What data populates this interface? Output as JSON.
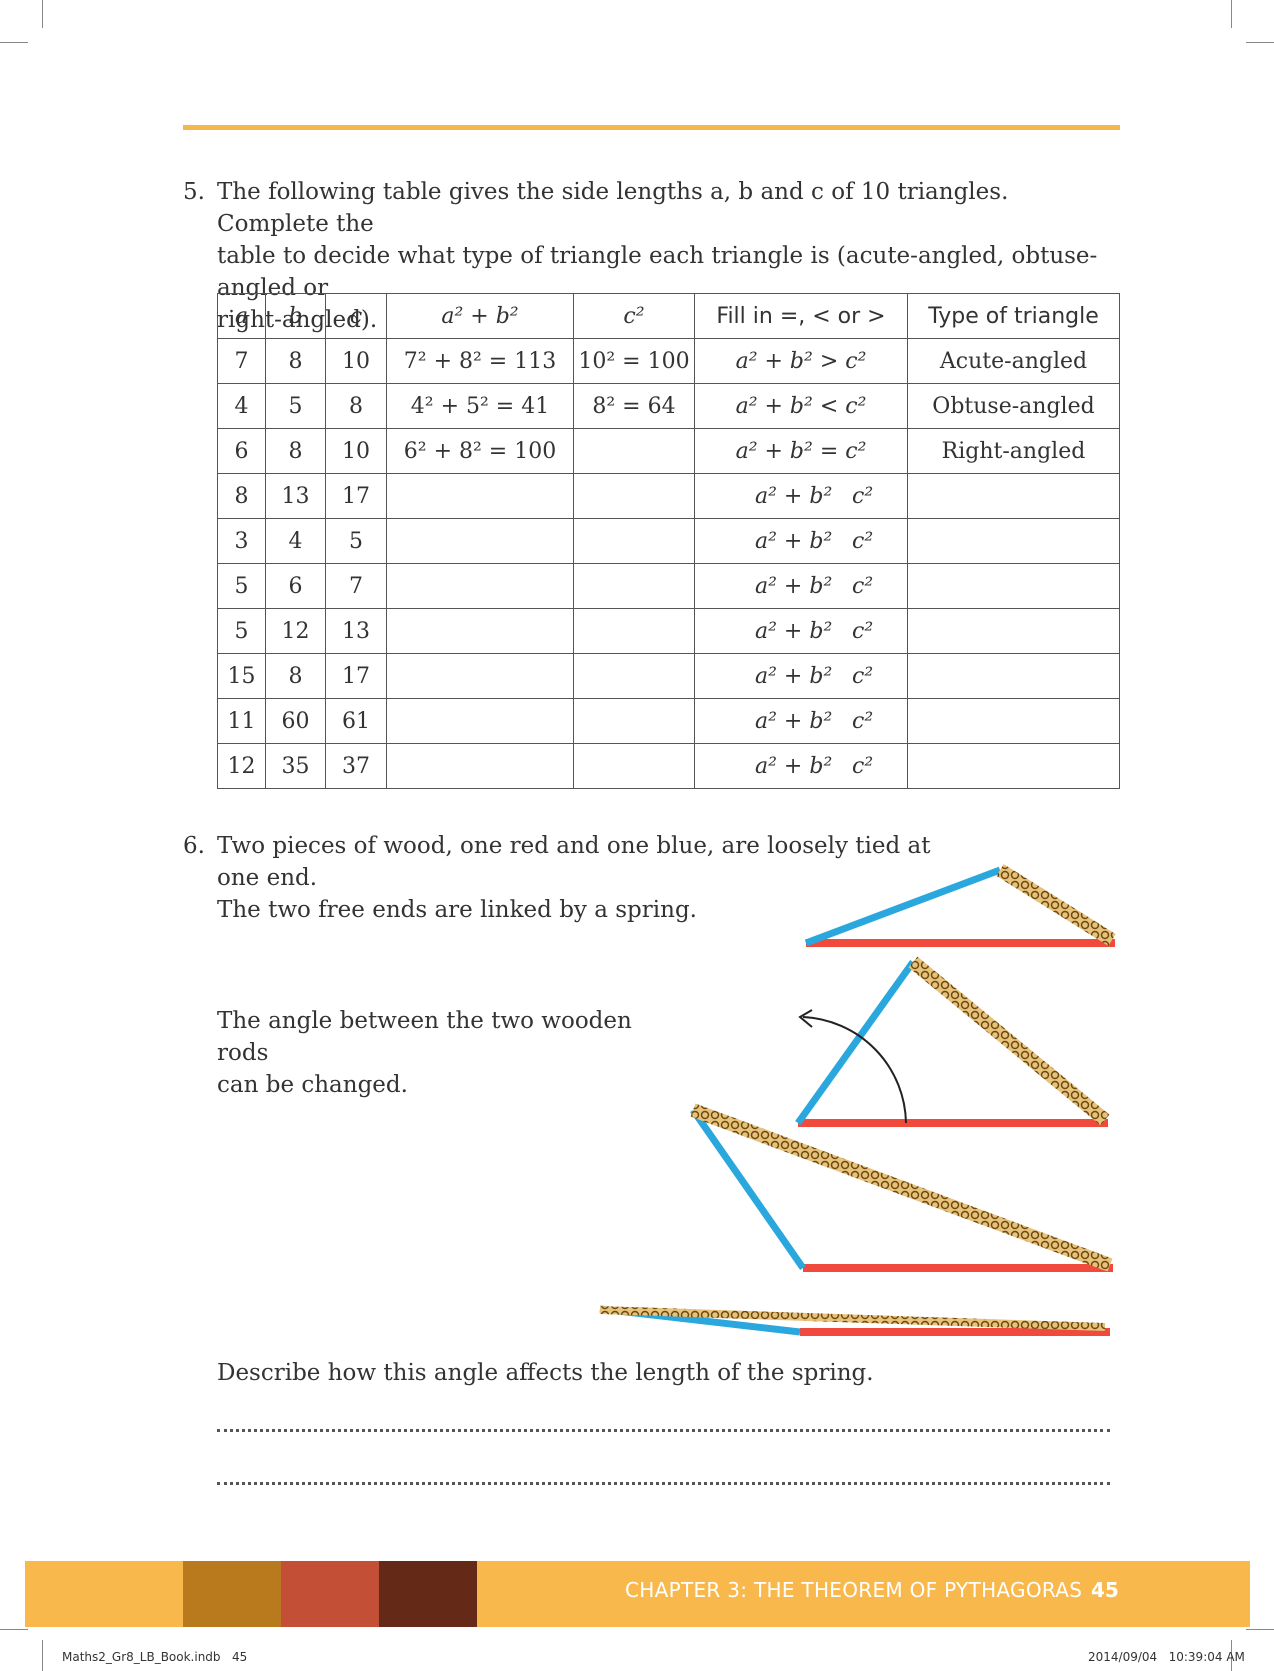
{
  "q5": {
    "number": "5.",
    "text_lines": [
      "The following table gives the side lengths a, b and c of 10 triangles. Complete the",
      "table to decide what type of triangle each triangle is (acute-angled, obtuse-angled or",
      "right-angled)."
    ]
  },
  "table": {
    "headers": [
      "a",
      "b",
      "c",
      "a² + b²",
      "c²",
      "Fill in =, < or >",
      "Type of triangle"
    ],
    "rows": [
      {
        "a": "7",
        "b": "8",
        "c": "10",
        "sum": "7² + 8² = 113",
        "csq": "10² = 100",
        "fill": "a² + b² > c²",
        "type": "Acute-angled"
      },
      {
        "a": "4",
        "b": "5",
        "c": "8",
        "sum": "4² + 5² = 41",
        "csq": "8² = 64",
        "fill": "a² + b² < c²",
        "type": "Obtuse-angled"
      },
      {
        "a": "6",
        "b": "8",
        "c": "10",
        "sum": "6² + 8² = 100",
        "csq": "",
        "fill": "a² + b² = c²",
        "type": "Right-angled"
      },
      {
        "a": "8",
        "b": "13",
        "c": "17",
        "sum": "",
        "csq": "",
        "fill_left": "a² + b²",
        "fill_right": "c²",
        "type": ""
      },
      {
        "a": "3",
        "b": "4",
        "c": "5",
        "sum": "",
        "csq": "",
        "fill_left": "a² + b²",
        "fill_right": "c²",
        "type": ""
      },
      {
        "a": "5",
        "b": "6",
        "c": "7",
        "sum": "",
        "csq": "",
        "fill_left": "a² + b²",
        "fill_right": "c²",
        "type": ""
      },
      {
        "a": "5",
        "b": "12",
        "c": "13",
        "sum": "",
        "csq": "",
        "fill_left": "a² + b²",
        "fill_right": "c²",
        "type": ""
      },
      {
        "a": "15",
        "b": "8",
        "c": "17",
        "sum": "",
        "csq": "",
        "fill_left": "a² + b²",
        "fill_right": "c²",
        "type": ""
      },
      {
        "a": "11",
        "b": "60",
        "c": "61",
        "sum": "",
        "csq": "",
        "fill_left": "a² + b²",
        "fill_right": "c²",
        "type": ""
      },
      {
        "a": "12",
        "b": "35",
        "c": "37",
        "sum": "",
        "csq": "",
        "fill_left": "a² + b²",
        "fill_right": "c²",
        "type": ""
      }
    ]
  },
  "q6": {
    "number": "6.",
    "text_lines": [
      "Two pieces of wood, one red and one blue, are loosely tied at one end.",
      "The two free ends are linked by a spring."
    ],
    "angle_lines": [
      "The angle between the two wooden rods",
      "can be changed."
    ],
    "describe": "Describe how this angle affects the length of the spring."
  },
  "colors": {
    "rod_red": "#f04a3c",
    "rod_blue": "#2aa7dd",
    "spring": "#e8c27a",
    "footer": "#f9b84b",
    "block1": "#b97a1e",
    "block2": "#c24f36",
    "block3": "#642917"
  },
  "footer": {
    "chapter": "CHAPTER 3: THE THEOREM OF PYTHAGORAS",
    "page": "45"
  },
  "slug": {
    "file": "Maths2_Gr8_LB_Book.indb   45",
    "date": "2014/09/04   10:39:04 AM"
  }
}
